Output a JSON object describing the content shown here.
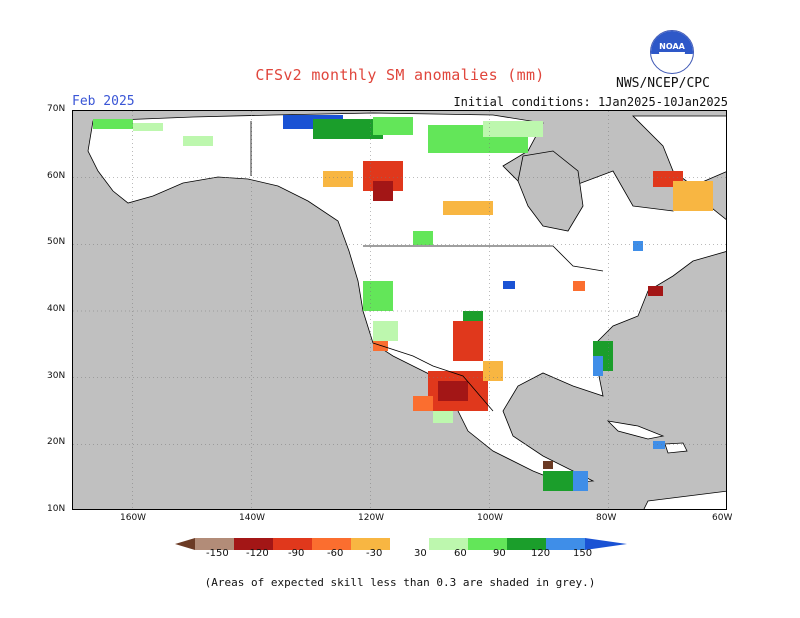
{
  "title": "CFSv2 monthly SM anomalies (mm)",
  "forecast_month": "Feb 2025",
  "agency": "NWS/NCEP/CPC",
  "logo_text": "NOAA",
  "initial_conditions": "Initial conditions: 1Jan2025-10Jan2025",
  "lat_labels": [
    "70N",
    "60N",
    "50N",
    "40N",
    "30N",
    "20N",
    "10N"
  ],
  "lon_labels": [
    "160W",
    "140W",
    "120W",
    "100W",
    "80W",
    "60W"
  ],
  "colorbar": {
    "labels": [
      "-150",
      "-120",
      "-90",
      "-60",
      "-30",
      "30",
      "60",
      "90",
      "120",
      "150"
    ],
    "colors": [
      "#6b3a24",
      "#b28c78",
      "#a31616",
      "#e0381c",
      "#fb6e2f",
      "#f8b642",
      "#ffffff",
      "#bdf7ae",
      "#63e659",
      "#1b9e2b",
      "#3f8ee8",
      "#1a52d4"
    ]
  },
  "footnote": "(Areas of expected skill less than 0.3 are shaded in grey.)",
  "chart_data": {
    "type": "heatmap",
    "title": "CFSv2 monthly SM anomalies (mm)",
    "lat_range": [
      "10N",
      "70N"
    ],
    "lon_range": [
      "170W",
      "60W"
    ],
    "units": "mm",
    "levels": [
      -150,
      -120,
      -90,
      -60,
      -30,
      30,
      60,
      90,
      120,
      150
    ],
    "regions": [
      {
        "area": "Northern Canada / Arctic coast",
        "anomaly": "wet (+60 to +150)"
      },
      {
        "area": "Northern Rockies / SW Canada",
        "anomaly": "dry (-30 to -120)"
      },
      {
        "area": "Northern Mexico / Texas",
        "anomaly": "dry (-60 to -150)"
      },
      {
        "area": "US Pacific coast / Great Basin",
        "anomaly": "wet (+30 to +90)"
      },
      {
        "area": "Central America",
        "anomaly": "wet (+30 to +150)"
      }
    ]
  }
}
